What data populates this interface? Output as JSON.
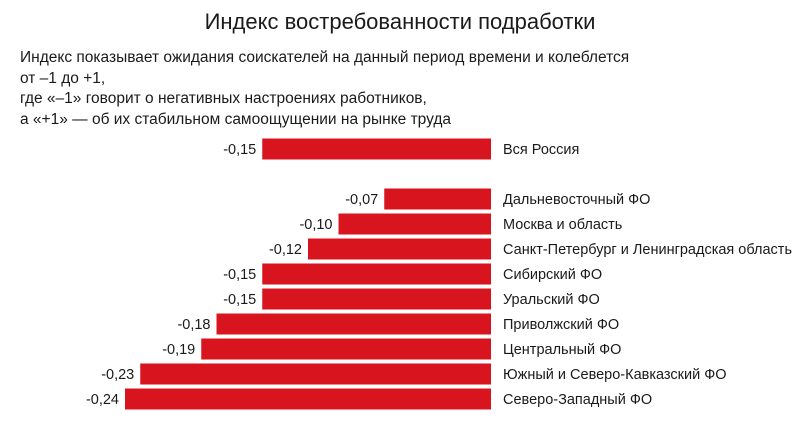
{
  "chart_data": {
    "type": "bar",
    "orientation": "horizontal",
    "title": "Индекс востребованности подработки",
    "description_lines": [
      "Индекс показывает ожидания соискателей на данный период времени и колеблется",
      "от –1 до +1,",
      "где «–1» говорит о негативных настроениях работников,",
      "а «+1» — об их стабильном самоощущении на рынке труда"
    ],
    "xlim": [
      -0.24,
      0
    ],
    "bar_color": "#d8141f",
    "categories": [
      "Вся Россия",
      "Дальневосточный ФО",
      "Москва и область",
      "Санкт-Петербург и Ленинградская область",
      "Сибирский ФО",
      "Уральский ФО",
      "Приволжский ФО",
      "Центральный ФО",
      "Южный и Северо-Кавказский ФО",
      "Северо-Западный ФО"
    ],
    "values": [
      -0.15,
      -0.07,
      -0.1,
      -0.12,
      -0.15,
      -0.15,
      -0.18,
      -0.19,
      -0.23,
      -0.24
    ],
    "value_labels": [
      "-0,15",
      "-0,07",
      "-0,10",
      "-0,12",
      "-0,15",
      "-0,15",
      "-0,18",
      "-0,19",
      "-0,23",
      "-0,24"
    ]
  }
}
